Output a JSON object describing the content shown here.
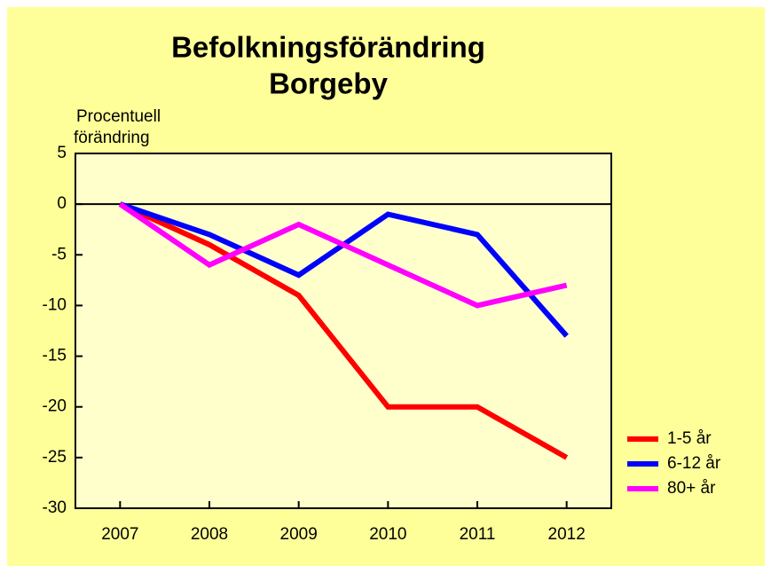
{
  "chart_data": {
    "type": "line",
    "title": [
      "Befolkningsförändring",
      "Borgeby"
    ],
    "ylabel": [
      "Procentuell",
      "förändring"
    ],
    "categories": [
      "2007",
      "2008",
      "2009",
      "2010",
      "2011",
      "2012"
    ],
    "series": [
      {
        "name": "1-5 år",
        "color": "#ff0000",
        "values": [
          0,
          -4,
          -9,
          -20,
          -20,
          -25
        ]
      },
      {
        "name": "6-12 år",
        "color": "#0000ff",
        "values": [
          0,
          -3,
          -7,
          -1,
          -3,
          -13
        ]
      },
      {
        "name": "80+ år",
        "color": "#ff00ff",
        "values": [
          0,
          -6,
          -2,
          -6,
          -10,
          -8
        ]
      }
    ],
    "ylim": [
      -30,
      5
    ],
    "yticks": [
      5,
      0,
      -5,
      -10,
      -15,
      -20,
      -25,
      -30
    ],
    "legend": "right"
  }
}
